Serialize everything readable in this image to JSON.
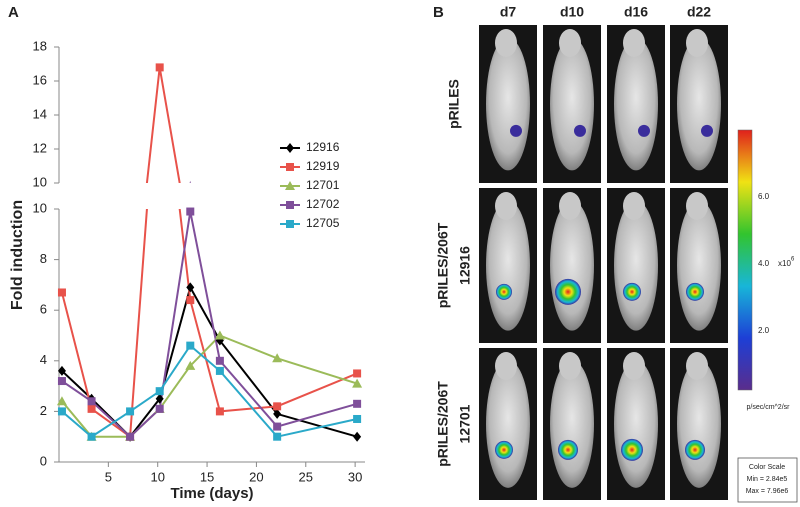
{
  "chart_data": {
    "type": "line",
    "panel_label": "A",
    "ylabel": "Fold induction",
    "xlabel": "Time (days)",
    "x": [
      0.3,
      3.3,
      7.2,
      10.2,
      13.3,
      16.3,
      22.1,
      30.2
    ],
    "xlim": [
      0,
      31
    ],
    "xticks": [
      5,
      10,
      15,
      20,
      25,
      30
    ],
    "ylim_lower": [
      0,
      10
    ],
    "yticks_lower": [
      0,
      2,
      4,
      6,
      8,
      10
    ],
    "ylim_upper": [
      10,
      18
    ],
    "yticks_upper": [
      10,
      12,
      14,
      16,
      18
    ],
    "series": [
      {
        "name": "12916",
        "color": "#000000",
        "marker": "diamond",
        "values": [
          3.6,
          2.5,
          1.0,
          2.5,
          6.9,
          4.8,
          1.9,
          1.0
        ]
      },
      {
        "name": "12919",
        "color": "#e8524a",
        "marker": "square",
        "values": [
          6.7,
          2.1,
          1.0,
          16.8,
          6.4,
          2.0,
          2.2,
          3.5
        ]
      },
      {
        "name": "12701",
        "color": "#9bbb59",
        "marker": "triangle",
        "values": [
          2.4,
          1.0,
          1.0,
          2.1,
          3.8,
          5.0,
          4.1,
          3.1
        ]
      },
      {
        "name": "12702",
        "color": "#7f4f9a",
        "marker": "square",
        "values": [
          3.2,
          2.4,
          1.0,
          2.1,
          9.9,
          4.0,
          1.4,
          2.3
        ]
      },
      {
        "name": "12705",
        "color": "#2aa9c9",
        "marker": "square",
        "values": [
          2.0,
          1.0,
          2.0,
          2.8,
          4.6,
          3.6,
          1.0,
          1.7
        ]
      }
    ]
  },
  "panel_b": {
    "panel_label": "B",
    "columns": [
      "d7",
      "d10",
      "d16",
      "d22"
    ],
    "rows": [
      [
        "pRILES"
      ],
      [
        "pRILES/206T",
        "12916"
      ],
      [
        "pRILES/206T",
        "12701"
      ]
    ],
    "colorbar_labels": [
      "6.0",
      "4.0",
      "2.0"
    ],
    "colorbar_multiplier": {
      "base": "x10",
      "exponent": "6"
    },
    "colorbar_unit": "p/sec/cm^2/sr",
    "color_scale": {
      "title": "Color Scale",
      "min": "Min = 2.84e5",
      "max": "Max = 7.96e6"
    }
  }
}
